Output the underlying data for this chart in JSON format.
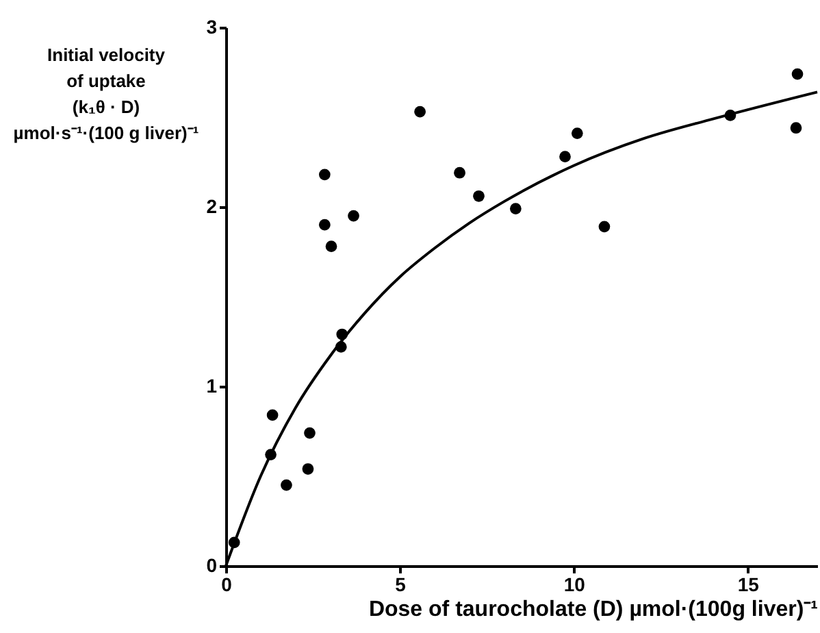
{
  "chart_data": {
    "type": "scatter",
    "xlabel": "Dose of taurocholate (D) µmol·(100g liver)⁻¹",
    "ylabel": "Initial velocity\nof uptake\n(k₁θ · D)\nµmol·s⁻¹·(100 g liver)⁻¹",
    "xlim": [
      0,
      17
    ],
    "xticks": [
      0,
      5,
      10,
      15
    ],
    "ylim": [
      0,
      3
    ],
    "yticks": [
      0,
      1,
      2,
      3
    ],
    "grid": false,
    "series": [
      {
        "marker": "circle",
        "color": "#000000",
        "x": [
          0.24,
          1.29,
          1.34,
          1.74,
          2.36,
          2.41,
          2.84,
          2.84,
          3.03,
          3.67,
          3.34,
          3.31,
          5.58,
          6.72,
          7.27,
          8.33,
          9.75,
          10.1,
          10.88,
          14.5,
          16.39,
          16.43
        ],
        "values": [
          0.13,
          0.62,
          0.84,
          0.45,
          0.54,
          0.74,
          2.18,
          1.9,
          1.78,
          1.95,
          1.29,
          1.22,
          2.53,
          2.19,
          2.06,
          1.99,
          2.28,
          2.41,
          1.89,
          2.51,
          2.44,
          2.74
        ]
      },
      {
        "type": "line",
        "marker": "none",
        "color": "#000000",
        "line_style": "solid",
        "x": [
          0,
          1,
          2,
          3,
          4,
          5,
          6,
          7,
          8,
          10,
          12,
          14,
          17
        ],
        "values": [
          0,
          0.5,
          0.88,
          1.17,
          1.41,
          1.61,
          1.77,
          1.91,
          2.03,
          2.23,
          2.38,
          2.49,
          2.64
        ]
      }
    ]
  }
}
